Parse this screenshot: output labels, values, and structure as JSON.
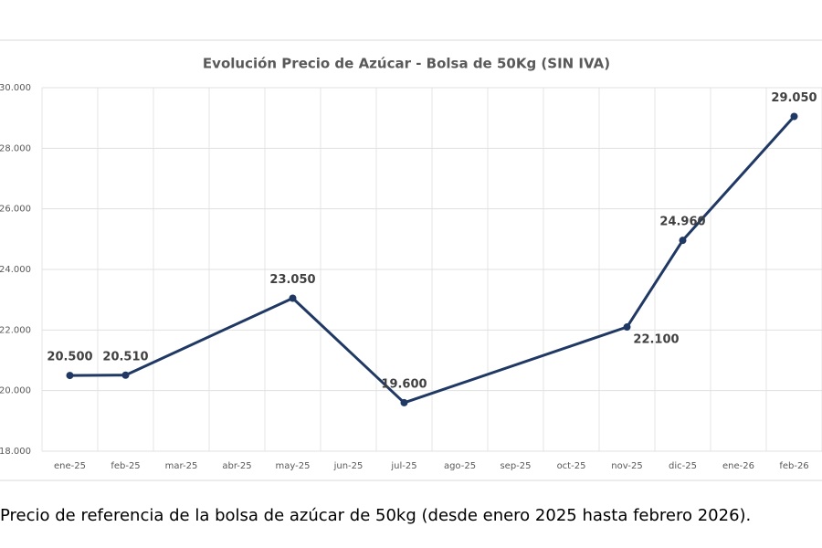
{
  "chart_data": {
    "type": "line",
    "title": "Evolución Precio de Azúcar - Bolsa de 50Kg (SIN IVA)",
    "caption": "Precio de referencia de la bolsa de azúcar de 50kg (desde enero 2025 hasta febrero 2026).",
    "categories": [
      "ene-25",
      "feb-25",
      "mar-25",
      "abr-25",
      "may-25",
      "jun-25",
      "jul-25",
      "ago-25",
      "sep-25",
      "oct-25",
      "nov-25",
      "dic-25",
      "ene-26",
      "feb-26"
    ],
    "series": [
      {
        "color": "#1f3864",
        "values": [
          20500,
          20510,
          null,
          null,
          23050,
          null,
          19600,
          null,
          null,
          null,
          22100,
          24960,
          null,
          29050
        ],
        "value_labels": [
          "20.500",
          "20.510",
          null,
          null,
          "23.050",
          null,
          "19.600",
          null,
          null,
          null,
          "22.100",
          "24.960",
          null,
          "29.050"
        ]
      }
    ],
    "ylim": [
      18000,
      30000
    ],
    "yticks": [
      {
        "value": 18000,
        "label": "18.000"
      },
      {
        "value": 20000,
        "label": "20.000"
      },
      {
        "value": 22000,
        "label": "22.000"
      },
      {
        "value": 24000,
        "label": "24.000"
      },
      {
        "value": 26000,
        "label": "26.000"
      },
      {
        "value": 28000,
        "label": "28.000"
      },
      {
        "value": 30000,
        "label": "30.000"
      }
    ],
    "grid": true
  }
}
